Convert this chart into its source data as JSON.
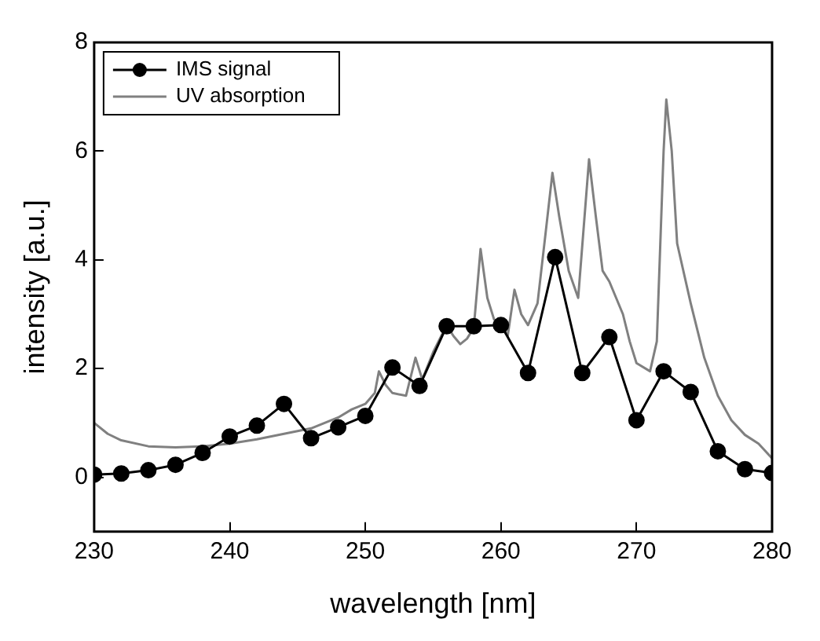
{
  "chart_data": {
    "type": "line",
    "xlabel": "wavelength [nm]",
    "ylabel": "intensity [a.u.]",
    "xlim": [
      230,
      280
    ],
    "xticks": [
      230,
      240,
      250,
      260,
      270,
      280
    ],
    "ylim": [
      -1,
      8
    ],
    "yticks": [
      0,
      2,
      4,
      6,
      8
    ],
    "grid": false,
    "legend": "top left",
    "line_style": "solid",
    "series": [
      {
        "name": "IMS signal",
        "color": "#000000",
        "marker": "circle",
        "x": [
          230,
          232,
          234,
          236,
          238,
          240,
          242,
          244,
          246,
          248,
          250,
          252,
          254,
          256,
          258,
          260,
          262,
          264,
          266,
          268,
          270,
          272,
          274,
          276,
          278,
          280
        ],
        "values": [
          0.05,
          0.07,
          0.13,
          0.23,
          0.45,
          0.75,
          0.95,
          1.35,
          0.72,
          0.92,
          1.13,
          2.02,
          1.68,
          2.78,
          2.78,
          2.8,
          1.92,
          4.05,
          1.92,
          2.58,
          1.05,
          1.95,
          1.57,
          0.48,
          0.15,
          0.08
        ]
      },
      {
        "name": "UV absorption",
        "color": "#808080",
        "marker": "none",
        "x": [
          230,
          231,
          232,
          234,
          236,
          238,
          240,
          242,
          244,
          245,
          246,
          247,
          248,
          249,
          250,
          250.7,
          251,
          251.5,
          252,
          253,
          253.7,
          254.2,
          255,
          256,
          256.5,
          257,
          257.5,
          258,
          258.5,
          259,
          259.5,
          260,
          260.5,
          261,
          261.5,
          262,
          262.7,
          263.3,
          263.8,
          264.3,
          265,
          265.7,
          266.5,
          267,
          267.5,
          268,
          268.5,
          269,
          269.5,
          270,
          271,
          271.5,
          272,
          272.2,
          272.6,
          273,
          274,
          275,
          276,
          277,
          278,
          279,
          280
        ],
        "values": [
          1.0,
          0.8,
          0.68,
          0.57,
          0.55,
          0.57,
          0.62,
          0.7,
          0.8,
          0.85,
          0.9,
          1.0,
          1.1,
          1.25,
          1.35,
          1.55,
          1.95,
          1.7,
          1.55,
          1.5,
          2.2,
          1.8,
          2.3,
          2.8,
          2.6,
          2.45,
          2.55,
          2.75,
          4.2,
          3.3,
          2.9,
          2.85,
          2.6,
          3.45,
          3.0,
          2.8,
          3.2,
          4.5,
          5.6,
          4.8,
          3.8,
          3.3,
          5.85,
          4.8,
          3.8,
          3.6,
          3.3,
          3.0,
          2.5,
          2.1,
          1.95,
          2.5,
          6.0,
          6.95,
          6.0,
          4.3,
          3.2,
          2.2,
          1.5,
          1.05,
          0.78,
          0.62,
          0.35
        ]
      }
    ]
  }
}
